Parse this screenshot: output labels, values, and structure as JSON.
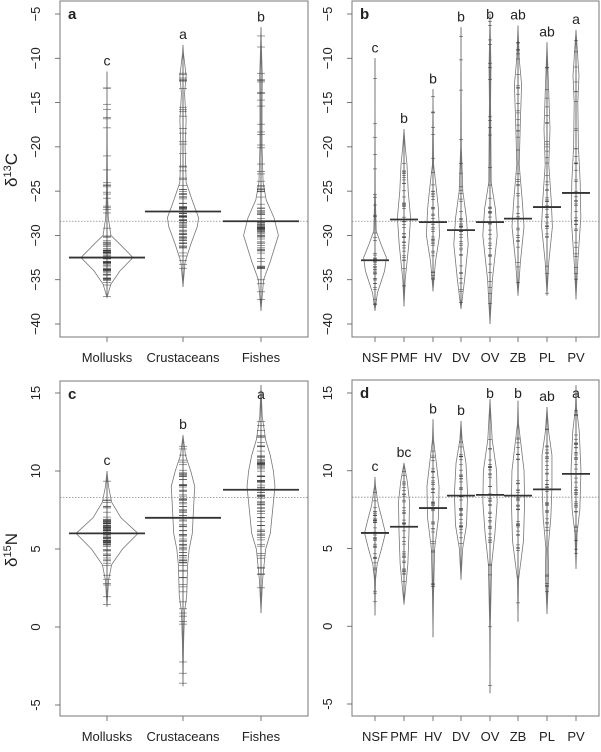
{
  "chart_data": [
    {
      "type": "beanplot",
      "panel_label": "a",
      "ylabel": {
        "delta": "δ",
        "sup": "13",
        "element": "C"
      },
      "yticks": [
        "−5",
        "−10",
        "−15",
        "−20",
        "−25",
        "−30",
        "−35",
        "−40"
      ],
      "ytick_values": [
        -5,
        -10,
        -15,
        -20,
        -25,
        -30,
        -35,
        -40
      ],
      "ylim": [
        -41.5,
        -4
      ],
      "overall_mean": -28.4,
      "categories": [
        {
          "name": "Mollusks",
          "letter": "c",
          "min": -37,
          "max": -11.5,
          "mean": -32.5,
          "density": [
            [
              -37,
              0
            ],
            [
              -35.5,
              0.15
            ],
            [
              -34,
              0.5
            ],
            [
              -32.5,
              1
            ],
            [
              -31,
              0.5
            ],
            [
              -30,
              0.15
            ],
            [
              -28,
              0.05
            ],
            [
              -25,
              0.02
            ],
            [
              -20,
              0.01
            ],
            [
              -11.5,
              0
            ]
          ]
        },
        {
          "name": "Crustaceans",
          "letter": "a",
          "min": -35.8,
          "max": -8.5,
          "mean": -27.3,
          "density": [
            [
              -35.8,
              0
            ],
            [
              -33,
              0.08
            ],
            [
              -31,
              0.3
            ],
            [
              -29,
              0.55
            ],
            [
              -28,
              0.6
            ],
            [
              -26,
              0.35
            ],
            [
              -24,
              0.12
            ],
            [
              -20,
              0.08
            ],
            [
              -17,
              0.12
            ],
            [
              -14,
              0.06
            ],
            [
              -12,
              0.12
            ],
            [
              -9.5,
              0.02
            ],
            [
              -8.5,
              0
            ]
          ]
        },
        {
          "name": "Fishes",
          "letter": "b",
          "min": -38.5,
          "max": -6.5,
          "mean": -28.4,
          "density": [
            [
              -38.5,
              0
            ],
            [
              -35,
              0.1
            ],
            [
              -33,
              0.35
            ],
            [
              -30,
              0.67
            ],
            [
              -28,
              0.5
            ],
            [
              -26,
              0.2
            ],
            [
              -24,
              0.08
            ],
            [
              -20,
              0.04
            ],
            [
              -15,
              0.04
            ],
            [
              -12,
              0.05
            ],
            [
              -9,
              0.02
            ],
            [
              -6.5,
              0
            ]
          ]
        }
      ]
    },
    {
      "type": "beanplot",
      "panel_label": "b",
      "yticks": [
        "−5",
        "−10",
        "−15",
        "−20",
        "−25",
        "−30",
        "−35",
        "−40"
      ],
      "ytick_values": [
        -5,
        -10,
        -15,
        -20,
        -25,
        -30,
        -35,
        -40
      ],
      "ylim": [
        -41.5,
        -4
      ],
      "overall_mean": -28.4,
      "categories": [
        {
          "name": "NSF",
          "letter": "c",
          "min": -38.5,
          "max": -10,
          "mean": -32.8,
          "density": [
            [
              -38.5,
              0
            ],
            [
              -36.5,
              0.2
            ],
            [
              -34,
              0.8
            ],
            [
              -32.5,
              0.95
            ],
            [
              -31,
              0.5
            ],
            [
              -29.5,
              0.1
            ],
            [
              -25,
              0.02
            ],
            [
              -10,
              0
            ]
          ]
        },
        {
          "name": "PMF",
          "letter": "b",
          "min": -38,
          "max": -18,
          "mean": -28.2,
          "density": [
            [
              -38,
              0
            ],
            [
              -35,
              0.1
            ],
            [
              -31,
              0.4
            ],
            [
              -28,
              0.55
            ],
            [
              -25,
              0.35
            ],
            [
              -22,
              0.25
            ],
            [
              -20,
              0.1
            ],
            [
              -18,
              0
            ]
          ]
        },
        {
          "name": "HV",
          "letter": "b",
          "min": -36.3,
          "max": -13.5,
          "mean": -28.5,
          "density": [
            [
              -36.3,
              0
            ],
            [
              -33,
              0.2
            ],
            [
              -30,
              0.55
            ],
            [
              -27,
              0.45
            ],
            [
              -25,
              0.3
            ],
            [
              -22,
              0.05
            ],
            [
              -13.5,
              0
            ]
          ]
        },
        {
          "name": "DV",
          "letter": "b",
          "min": -38.3,
          "max": -6.5,
          "mean": -29.4,
          "density": [
            [
              -38.3,
              0
            ],
            [
              -35,
              0.3
            ],
            [
              -31,
              0.6
            ],
            [
              -28,
              0.45
            ],
            [
              -25,
              0.15
            ],
            [
              -20,
              0.03
            ],
            [
              -6.5,
              0
            ]
          ]
        },
        {
          "name": "OV",
          "letter": "b",
          "min": -40,
          "max": -5,
          "mean": -28.5,
          "density": [
            [
              -40,
              0
            ],
            [
              -35,
              0.2
            ],
            [
              -30,
              0.6
            ],
            [
              -27,
              0.45
            ],
            [
              -24,
              0.1
            ],
            [
              -15,
              0.05
            ],
            [
              -11,
              0.08
            ],
            [
              -5,
              0
            ]
          ]
        },
        {
          "name": "ZB",
          "letter": "ab",
          "min": -36.8,
          "max": -6.3,
          "mean": -28.1,
          "density": [
            [
              -36.8,
              0
            ],
            [
              -33,
              0.2
            ],
            [
              -29,
              0.5
            ],
            [
              -26,
              0.35
            ],
            [
              -22,
              0.1
            ],
            [
              -17,
              0.2
            ],
            [
              -13,
              0.3
            ],
            [
              -10,
              0.1
            ],
            [
              -6.3,
              0
            ]
          ]
        },
        {
          "name": "PL",
          "letter": "ab",
          "min": -36.8,
          "max": -8.2,
          "mean": -26.8,
          "density": [
            [
              -36.8,
              0
            ],
            [
              -33,
              0.15
            ],
            [
              -29,
              0.45
            ],
            [
              -26,
              0.35
            ],
            [
              -22,
              0.15
            ],
            [
              -18,
              0.25
            ],
            [
              -14,
              0.15
            ],
            [
              -8.2,
              0
            ]
          ]
        },
        {
          "name": "PV",
          "letter": "a",
          "min": -37.2,
          "max": -6.8,
          "mean": -25.2,
          "density": [
            [
              -37.2,
              0
            ],
            [
              -33,
              0.15
            ],
            [
              -28,
              0.4
            ],
            [
              -24,
              0.35
            ],
            [
              -20,
              0.2
            ],
            [
              -15,
              0.15
            ],
            [
              -12,
              0.25
            ],
            [
              -6.8,
              0
            ]
          ]
        }
      ]
    },
    {
      "type": "beanplot",
      "panel_label": "c",
      "ylabel": {
        "delta": "δ",
        "sup": "15",
        "element": "N"
      },
      "yticks": [
        "15",
        "10",
        "5",
        "0",
        "-5"
      ],
      "ytick_values": [
        15,
        10,
        5,
        0,
        -5
      ],
      "ylim": [
        -6.5,
        15.8
      ],
      "overall_mean": 8.3,
      "categories": [
        {
          "name": "Mollusks",
          "letter": "c",
          "min": 1.3,
          "max": 10,
          "mean": 6.0,
          "density": [
            [
              1.3,
              0
            ],
            [
              3,
              0.05
            ],
            [
              4,
              0.15
            ],
            [
              5,
              0.5
            ],
            [
              6,
              1
            ],
            [
              7,
              0.45
            ],
            [
              8,
              0.15
            ],
            [
              9,
              0.05
            ],
            [
              10,
              0
            ]
          ]
        },
        {
          "name": "Crustaceans",
          "letter": "b",
          "min": -3.8,
          "max": 12.3,
          "mean": 7.0,
          "density": [
            [
              -3.8,
              0
            ],
            [
              -1,
              0.02
            ],
            [
              1,
              0.05
            ],
            [
              2,
              0.12
            ],
            [
              4,
              0.15
            ],
            [
              5,
              0.2
            ],
            [
              6,
              0.3
            ],
            [
              8,
              0.35
            ],
            [
              9,
              0.38
            ],
            [
              10,
              0.25
            ],
            [
              11,
              0.08
            ],
            [
              12.3,
              0
            ]
          ]
        },
        {
          "name": "Fishes",
          "letter": "a",
          "min": 0.9,
          "max": 15.5,
          "mean": 8.8,
          "density": [
            [
              0.9,
              0
            ],
            [
              3,
              0.05
            ],
            [
              5,
              0.15
            ],
            [
              6,
              0.3
            ],
            [
              8,
              0.4
            ],
            [
              9,
              0.45
            ],
            [
              10,
              0.4
            ],
            [
              11,
              0.3
            ],
            [
              12,
              0.15
            ],
            [
              13.5,
              0.04
            ],
            [
              15.5,
              0
            ]
          ]
        }
      ]
    },
    {
      "type": "beanplot",
      "panel_label": "d",
      "yticks": [
        "15",
        "10",
        "5",
        "0",
        "-5"
      ],
      "ytick_values": [
        15,
        10,
        5,
        0,
        -5
      ],
      "ylim": [
        -6.5,
        15.8
      ],
      "overall_mean": 8.3,
      "categories": [
        {
          "name": "NSF",
          "letter": "c",
          "min": 0.7,
          "max": 9.6,
          "mean": 6.0,
          "density": [
            [
              0.7,
              0
            ],
            [
              3,
              0.05
            ],
            [
              4,
              0.2
            ],
            [
              5,
              0.6
            ],
            [
              6,
              0.95
            ],
            [
              7,
              0.6
            ],
            [
              7.8,
              0.3
            ],
            [
              9,
              0.05
            ],
            [
              9.6,
              0
            ]
          ]
        },
        {
          "name": "PMF",
          "letter": "bc",
          "min": 1.4,
          "max": 10.5,
          "mean": 6.4,
          "density": [
            [
              1.4,
              0
            ],
            [
              2.5,
              0.15
            ],
            [
              4,
              0.35
            ],
            [
              6,
              0.45
            ],
            [
              8,
              0.5
            ],
            [
              9.3,
              0.3
            ],
            [
              10.5,
              0
            ]
          ]
        },
        {
          "name": "HV",
          "letter": "b",
          "min": -0.7,
          "max": 13.3,
          "mean": 7.6,
          "density": [
            [
              -0.7,
              0
            ],
            [
              2,
              0.05
            ],
            [
              5,
              0.15
            ],
            [
              7,
              0.5
            ],
            [
              9,
              0.55
            ],
            [
              10.5,
              0.3
            ],
            [
              12,
              0.05
            ],
            [
              13.3,
              0
            ]
          ]
        },
        {
          "name": "DV",
          "letter": "b",
          "min": 3,
          "max": 13.2,
          "mean": 8.4,
          "density": [
            [
              3,
              0
            ],
            [
              5,
              0.15
            ],
            [
              6.5,
              0.5
            ],
            [
              8.5,
              0.6
            ],
            [
              10.5,
              0.45
            ],
            [
              12,
              0.1
            ],
            [
              13.2,
              0
            ]
          ]
        },
        {
          "name": "OV",
          "letter": "b",
          "min": -4.3,
          "max": 14.6,
          "mean": 8.45,
          "density": [
            [
              -4.3,
              0
            ],
            [
              0,
              0.03
            ],
            [
              4,
              0.15
            ],
            [
              6,
              0.45
            ],
            [
              8,
              0.65
            ],
            [
              10,
              0.6
            ],
            [
              12,
              0.2
            ],
            [
              14.6,
              0
            ]
          ]
        },
        {
          "name": "ZB",
          "letter": "b",
          "min": 0.3,
          "max": 14.5,
          "mean": 8.4,
          "density": [
            [
              0.3,
              0
            ],
            [
              3,
              0.05
            ],
            [
              5.5,
              0.5
            ],
            [
              8,
              0.6
            ],
            [
              10,
              0.55
            ],
            [
              11.5,
              0.3
            ],
            [
              13,
              0.05
            ],
            [
              14.5,
              0
            ]
          ]
        },
        {
          "name": "PL",
          "letter": "ab",
          "min": 0.8,
          "max": 14.1,
          "mean": 8.8,
          "density": [
            [
              0.8,
              0
            ],
            [
              2.5,
              0.1
            ],
            [
              3.5,
              0.15
            ],
            [
              5,
              0.1
            ],
            [
              7,
              0.35
            ],
            [
              9,
              0.45
            ],
            [
              11,
              0.45
            ],
            [
              12.5,
              0.15
            ],
            [
              14.1,
              0
            ]
          ]
        },
        {
          "name": "PV",
          "letter": "a",
          "min": 3.7,
          "max": 15.5,
          "mean": 9.8,
          "density": [
            [
              3.7,
              0
            ],
            [
              6,
              0.1
            ],
            [
              7.5,
              0.35
            ],
            [
              10,
              0.45
            ],
            [
              12.5,
              0.3
            ],
            [
              14,
              0.05
            ],
            [
              15.5,
              0
            ]
          ]
        }
      ]
    }
  ]
}
